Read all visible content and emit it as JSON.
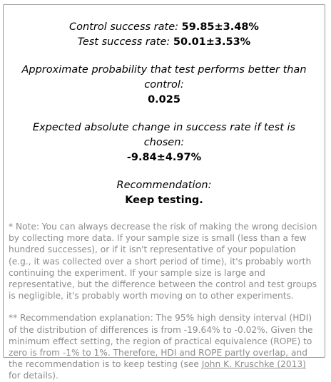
{
  "control": {
    "label": "Control success rate:",
    "value": "59.85±3.48%"
  },
  "test": {
    "label": "Test success rate:",
    "value": "50.01±3.53%"
  },
  "probability": {
    "question": "Approximate probability that test performs better than control:",
    "value": "0.025"
  },
  "expected_change": {
    "question": "Expected absolute change in success rate if test is chosen:",
    "value": "-9.84±4.97%"
  },
  "recommendation": {
    "label": "Recommendation:",
    "value": "Keep testing."
  },
  "notes": {
    "note1": "* Note: You can always decrease the risk of making the wrong decision by collecting more data. If your sample size is small (less than a few hundred successes), or if it isn't representative of your population (e.g., it was collected over a short period of time), it's probably worth continuing the experiment. If your sample size is large and representative, but the difference between the control and test groups is negligible, it's probably worth moving on to other experiments.",
    "note2_before": "** Recommendation explanation: The 95% high density interval (HDI) of the distribution of differences is from -19.64% to -0.02%. Given the minimum effect setting, the region of practical equivalence (ROPE) to zero is from -1% to 1%. Therefore, HDI and ROPE partly overlap, and the recommendation is to keep testing (see ",
    "note2_link": "John K. Kruschke (2013)",
    "note2_after": " for details)."
  }
}
